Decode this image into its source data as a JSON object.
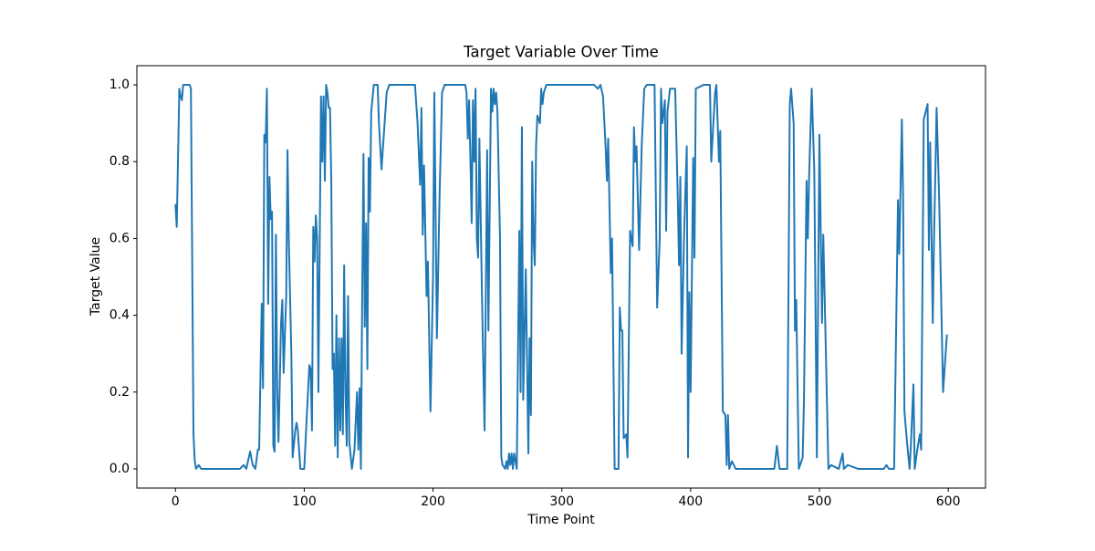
{
  "chart_data": {
    "type": "line",
    "title": "Target Variable Over Time",
    "x_label": "Time Point",
    "y_label": "Target Value",
    "color": "#1f77b4",
    "grid": false,
    "xlim": [
      -29.95,
      628.95
    ],
    "ylim": [
      -0.05,
      1.05
    ],
    "xticks": [
      0,
      100,
      200,
      300,
      400,
      500,
      600
    ],
    "yticks": [
      {
        "value": 0,
        "label": "0.0"
      },
      0.2,
      0.4,
      0.6,
      0.8,
      {
        "value": 1,
        "label": "1.0"
      }
    ],
    "x": [
      0,
      1,
      3,
      4,
      5,
      6,
      11,
      12,
      13,
      14,
      15,
      16,
      18,
      20,
      50,
      53,
      55,
      58,
      60,
      62,
      64,
      65,
      67,
      68,
      69,
      70,
      71,
      72,
      73,
      74,
      75,
      76,
      77,
      78,
      79,
      80,
      82,
      83,
      84,
      86,
      87,
      88,
      90,
      91,
      93,
      94,
      95,
      97,
      100,
      102,
      104,
      105,
      106,
      107,
      108,
      109,
      110,
      111,
      113,
      114,
      115,
      116,
      117,
      118,
      119,
      120,
      121,
      122,
      123,
      124,
      125,
      126,
      127,
      128,
      129,
      130,
      131,
      132,
      133,
      134,
      135,
      137,
      139,
      141,
      142,
      143,
      144,
      145,
      146,
      147,
      148,
      149,
      150,
      151,
      152,
      154,
      157,
      158,
      160,
      162,
      164,
      166,
      186,
      188,
      190,
      191,
      192,
      193,
      195,
      196,
      198,
      200,
      201,
      203,
      205,
      207,
      209,
      225,
      226,
      227,
      228,
      229,
      230,
      231,
      232,
      233,
      234,
      235,
      236,
      238,
      240,
      242,
      243,
      245,
      246,
      247,
      248,
      249,
      250,
      252,
      253,
      254,
      256,
      257,
      258,
      259,
      260,
      261,
      262,
      263,
      265,
      267,
      268,
      269,
      270,
      272,
      274,
      275,
      276,
      277,
      278,
      279,
      280,
      281,
      283,
      284,
      285,
      286,
      288,
      325,
      328,
      330,
      332,
      334,
      335,
      336,
      338,
      339,
      341,
      344,
      345,
      346,
      347,
      348,
      350,
      351,
      353,
      355,
      356,
      357,
      358,
      360,
      362,
      364,
      366,
      372,
      374,
      376,
      377,
      378,
      380,
      381,
      382,
      384,
      388,
      390,
      391,
      392,
      393,
      395,
      397,
      398,
      399,
      400,
      402,
      403,
      404,
      410,
      415,
      416,
      419,
      420,
      422,
      423,
      425,
      427,
      428,
      429,
      430,
      432,
      435,
      465,
      467,
      469,
      475,
      477,
      478,
      480,
      481,
      482,
      484,
      487,
      488,
      490,
      491,
      492,
      494,
      496,
      498,
      500,
      502,
      503,
      507,
      509,
      515,
      518,
      519,
      522,
      530,
      550,
      552,
      554,
      558,
      561,
      562,
      564,
      565,
      566,
      568,
      570,
      571,
      573,
      574,
      576,
      578,
      579,
      581,
      584,
      585,
      586,
      588,
      589,
      591,
      593,
      596,
      599
    ],
    "values": [
      0.69,
      0.63,
      0.99,
      0.97,
      0.96,
      1.0,
      1.0,
      0.99,
      0.55,
      0.09,
      0.02,
      0.0,
      0.01,
      0.0,
      0.0,
      0.01,
      0.0,
      0.045,
      0.01,
      0.0,
      0.05,
      0.05,
      0.43,
      0.21,
      0.87,
      0.85,
      0.99,
      0.43,
      0.76,
      0.65,
      0.67,
      0.06,
      0.045,
      0.61,
      0.2,
      0.07,
      0.38,
      0.44,
      0.25,
      0.45,
      0.83,
      0.6,
      0.3,
      0.03,
      0.1,
      0.12,
      0.1,
      0.0,
      0.0,
      0.14,
      0.27,
      0.26,
      0.1,
      0.63,
      0.54,
      0.66,
      0.6,
      0.2,
      0.97,
      0.8,
      0.97,
      0.75,
      1.0,
      0.98,
      0.94,
      0.94,
      0.75,
      0.26,
      0.3,
      0.06,
      0.4,
      0.03,
      0.34,
      0.1,
      0.34,
      0.09,
      0.53,
      0.2,
      0.06,
      0.45,
      0.07,
      0.0,
      0.05,
      0.2,
      0.05,
      0.21,
      0.0,
      0.45,
      0.82,
      0.37,
      0.64,
      0.26,
      0.81,
      0.67,
      0.93,
      1.0,
      1.0,
      0.9,
      0.78,
      0.88,
      0.98,
      1.0,
      1.0,
      0.9,
      0.74,
      0.94,
      0.61,
      0.79,
      0.45,
      0.54,
      0.15,
      0.5,
      0.98,
      0.34,
      0.7,
      0.98,
      1.0,
      1.0,
      0.98,
      0.86,
      0.96,
      0.81,
      0.64,
      0.96,
      0.8,
      0.99,
      0.6,
      0.55,
      0.86,
      0.45,
      0.1,
      0.83,
      0.36,
      0.99,
      0.93,
      0.99,
      0.95,
      0.98,
      0.93,
      0.6,
      0.03,
      0.01,
      0.0,
      0.02,
      0.0,
      0.04,
      0.01,
      0.04,
      0.0,
      0.04,
      0.0,
      0.62,
      0.2,
      0.89,
      0.18,
      0.52,
      0.04,
      0.34,
      0.14,
      0.8,
      0.6,
      0.53,
      0.84,
      0.92,
      0.9,
      0.99,
      0.95,
      0.98,
      1.0,
      1.0,
      0.99,
      1.0,
      0.97,
      0.84,
      0.75,
      0.86,
      0.51,
      0.6,
      0.0,
      0.0,
      0.42,
      0.36,
      0.36,
      0.08,
      0.09,
      0.03,
      0.62,
      0.58,
      0.89,
      0.8,
      0.84,
      0.57,
      0.84,
      0.99,
      1.0,
      1.0,
      0.42,
      0.6,
      0.99,
      0.9,
      0.96,
      0.62,
      0.93,
      0.99,
      0.99,
      0.71,
      0.53,
      0.76,
      0.3,
      0.62,
      0.84,
      0.03,
      0.46,
      0.2,
      0.81,
      0.55,
      0.99,
      1.0,
      1.0,
      0.8,
      0.98,
      1.0,
      0.8,
      0.88,
      0.15,
      0.14,
      0.01,
      0.14,
      0.0,
      0.02,
      0.0,
      0.0,
      0.06,
      0.0,
      0.0,
      0.95,
      0.99,
      0.9,
      0.36,
      0.44,
      0.0,
      0.03,
      0.18,
      0.75,
      0.6,
      0.76,
      0.99,
      0.78,
      0.03,
      0.87,
      0.38,
      0.61,
      0.0,
      0.01,
      0.0,
      0.04,
      0.0,
      0.01,
      0.0,
      0.0,
      0.01,
      0.0,
      0.0,
      0.7,
      0.56,
      0.91,
      0.7,
      0.15,
      0.07,
      0.0,
      0.06,
      0.22,
      0.0,
      0.05,
      0.09,
      0.05,
      0.91,
      0.95,
      0.57,
      0.85,
      0.38,
      0.6,
      0.94,
      0.7,
      0.2,
      0.35
    ]
  }
}
